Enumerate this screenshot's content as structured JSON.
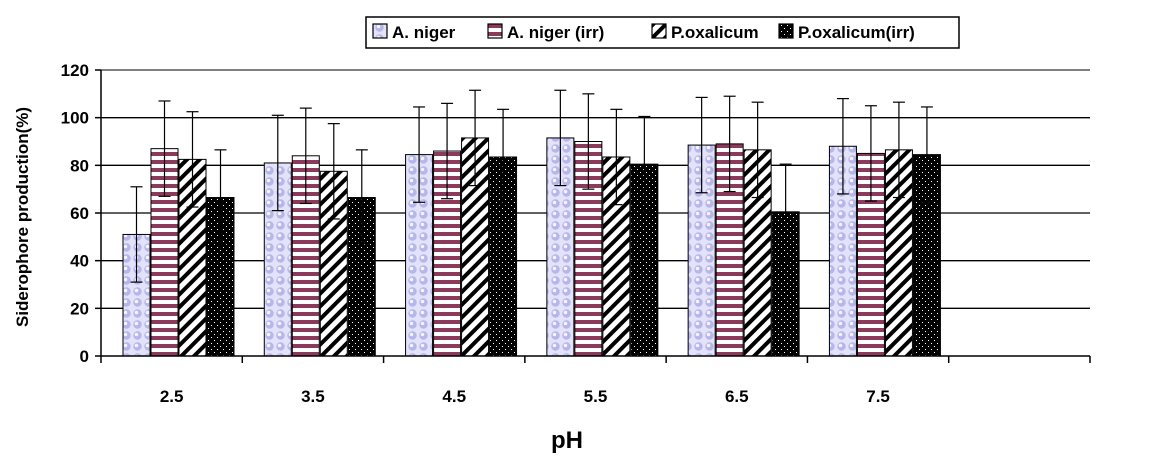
{
  "chart_data": {
    "type": "bar",
    "title": "",
    "xlabel": "pH",
    "ylabel": "Siderophore production(%)",
    "ylim": [
      0,
      120
    ],
    "yticks": [
      0,
      20,
      40,
      60,
      80,
      100,
      120
    ],
    "categories": [
      "2.5",
      "3.5",
      "4.5",
      "5.5",
      "6.5",
      "7.5"
    ],
    "error": 20,
    "grid": true,
    "legend_position": "top",
    "series": [
      {
        "name": "A. niger",
        "pattern": "dots",
        "color": "#b6b6ec",
        "values": [
          51,
          81,
          84.5,
          91.5,
          88.5,
          88
        ]
      },
      {
        "name": "A. niger (irr)",
        "pattern": "hstripes",
        "color": "#8c3a5c",
        "values": [
          87,
          84,
          86,
          90,
          89,
          85
        ]
      },
      {
        "name": "P.oxalicum",
        "pattern": "diagonal",
        "color": "#000000",
        "values": [
          82.5,
          77.5,
          91.5,
          83.5,
          86.5,
          86.5
        ]
      },
      {
        "name": "P.oxalicum(irr)",
        "pattern": "checker",
        "color": "#000000",
        "values": [
          66.5,
          66.5,
          83.5,
          80.5,
          60.5,
          84.5
        ]
      }
    ]
  }
}
